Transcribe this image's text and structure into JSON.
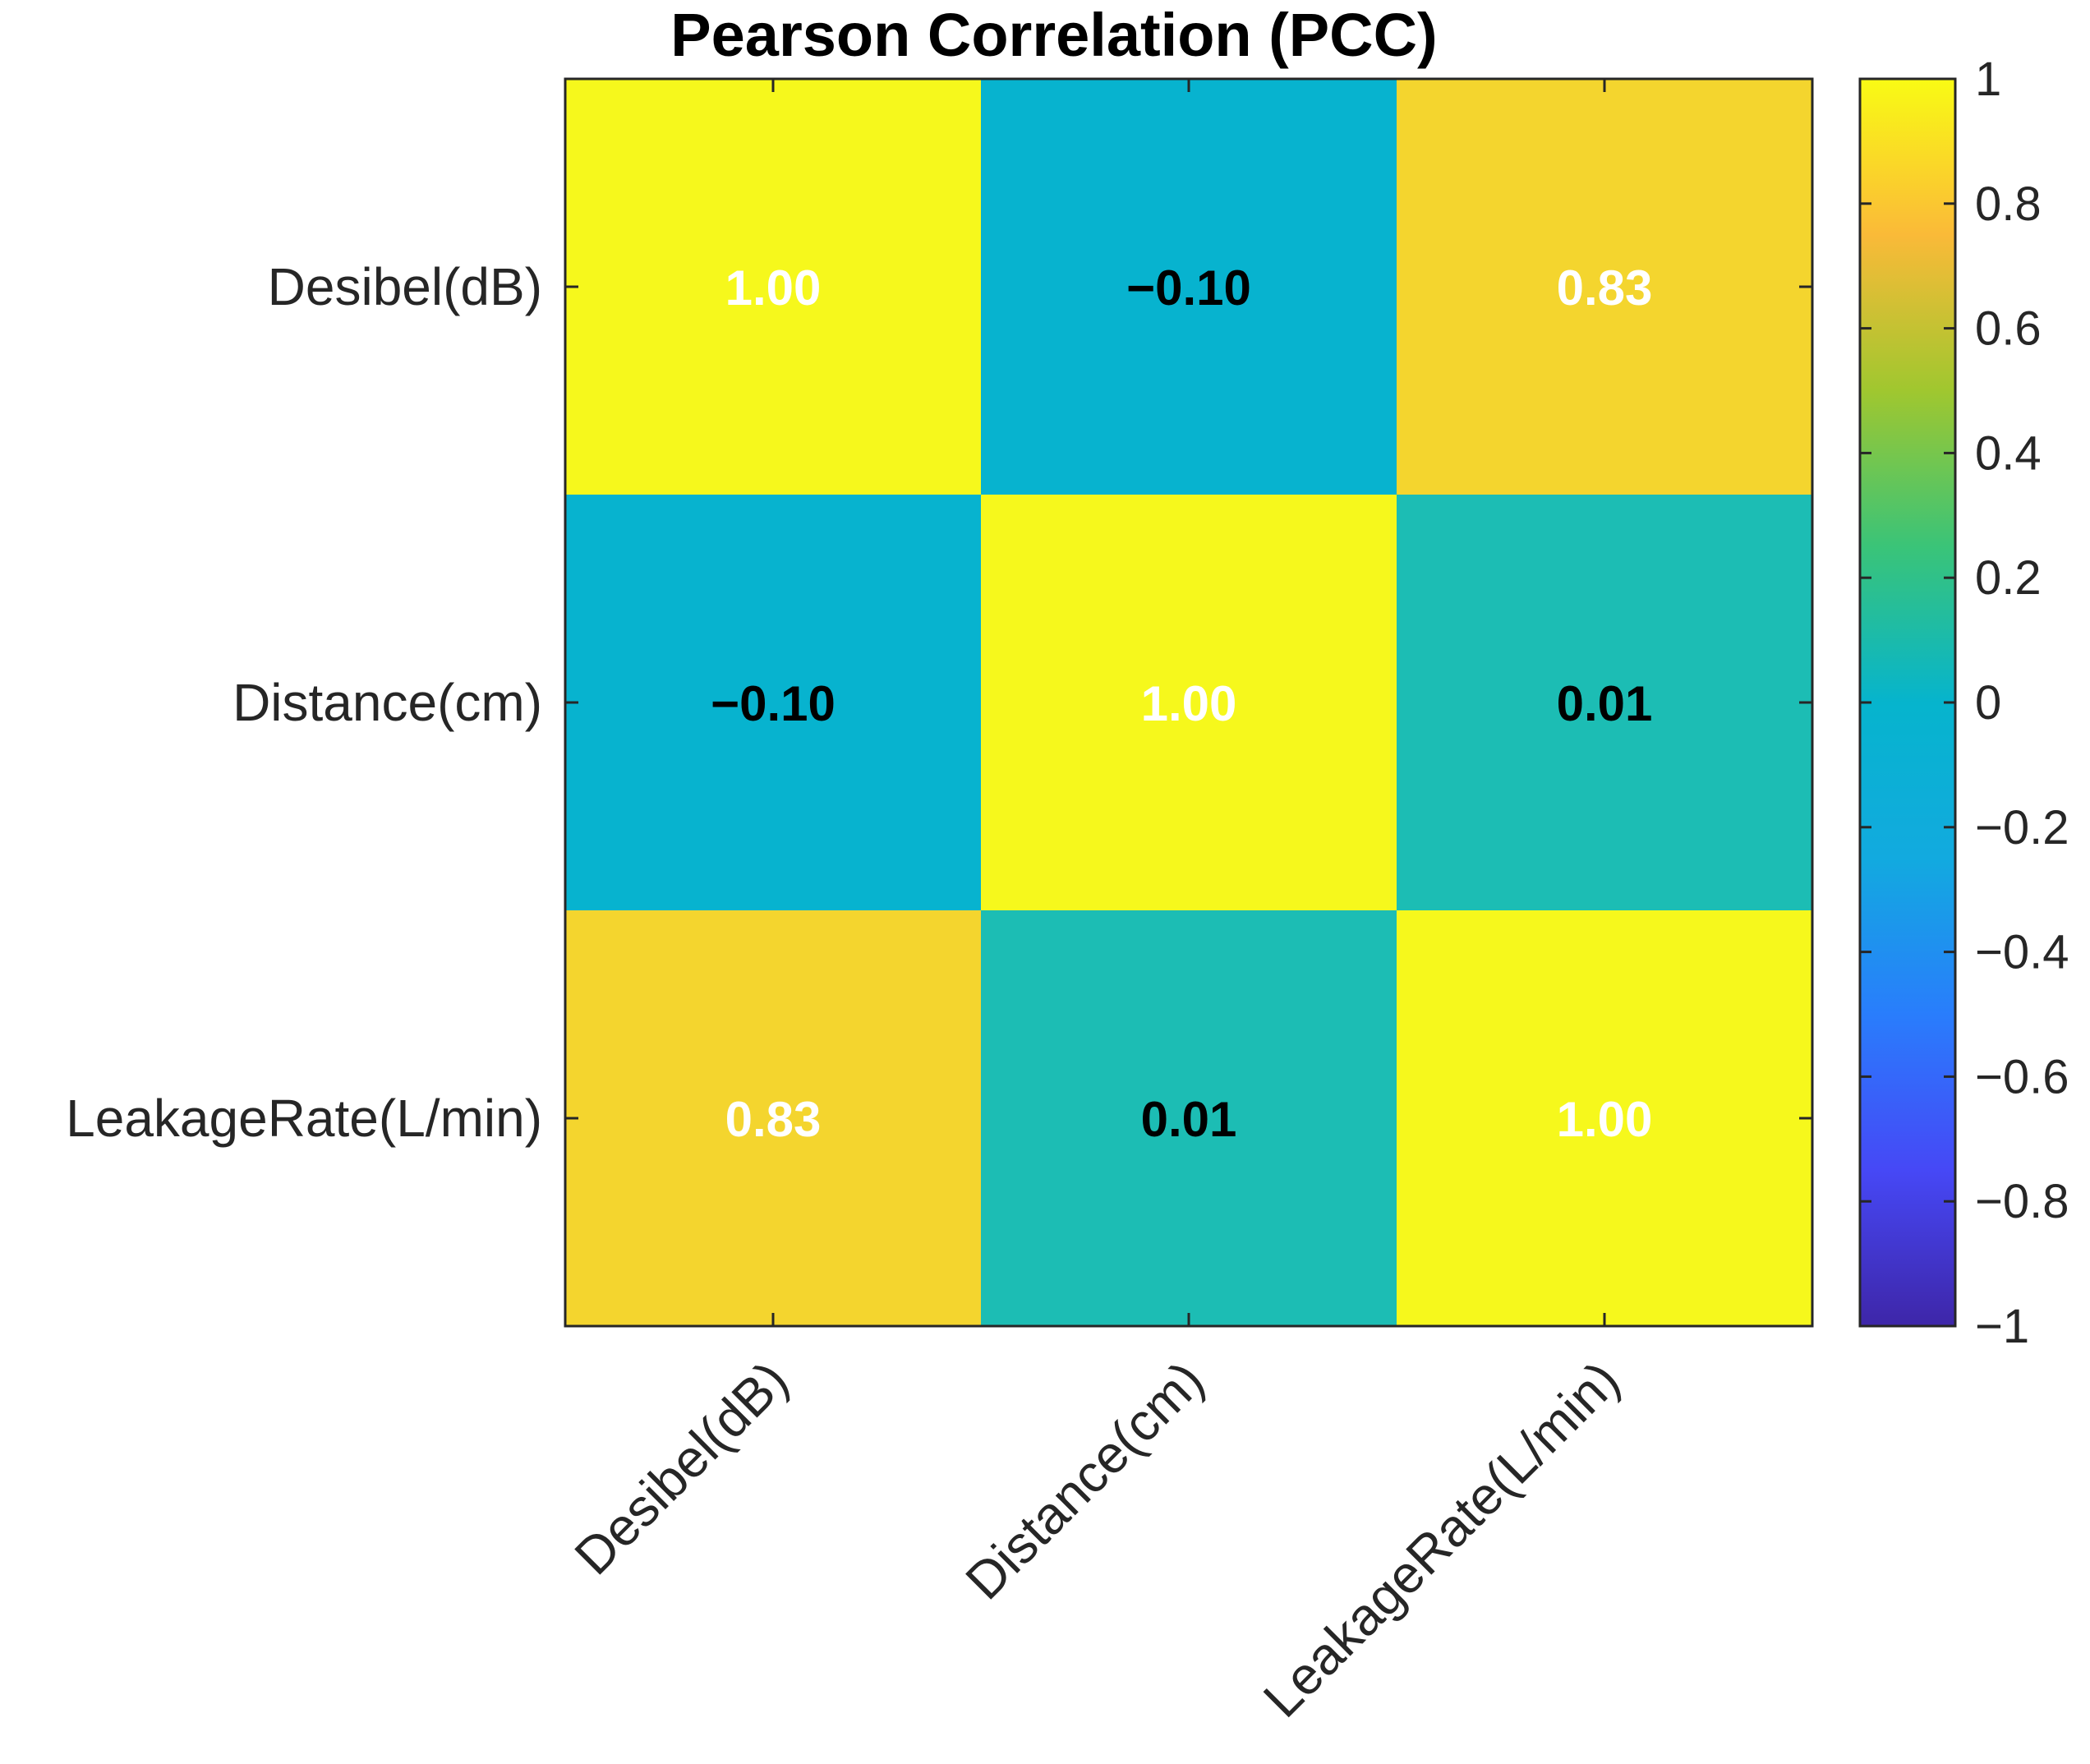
{
  "chart_data": {
    "type": "heatmap",
    "title": "Pearson Correlation (PCC)",
    "row_labels": [
      "Desibel(dB)",
      "Distance(cm)",
      "LeakageRate(L/min)"
    ],
    "col_labels": [
      "Desibel(dB)",
      "Distance(cm)",
      "LeakageRate(L/min)"
    ],
    "values": [
      [
        1.0,
        -0.1,
        0.83
      ],
      [
        -0.1,
        1.0,
        0.01
      ],
      [
        0.83,
        0.01,
        1.0
      ]
    ],
    "value_labels": [
      [
        "1.00",
        "−0.10",
        "0.83"
      ],
      [
        "−0.10",
        "1.00",
        "0.01"
      ],
      [
        "0.83",
        "0.01",
        "1.00"
      ]
    ],
    "colorbar": {
      "range": [
        -1,
        1
      ],
      "ticks": [
        1,
        0.8,
        0.6,
        0.4,
        0.2,
        0,
        -0.2,
        -0.4,
        -0.6,
        -0.8,
        -1
      ],
      "tick_labels": [
        "1",
        "0.8",
        "0.6",
        "0.4",
        "0.2",
        "0",
        "−0.2",
        "−0.4",
        "−0.6",
        "−0.8",
        "−1"
      ],
      "colormap": "parula"
    },
    "label_colors": {
      "light": "#ffffff",
      "dark": "#000000"
    }
  }
}
